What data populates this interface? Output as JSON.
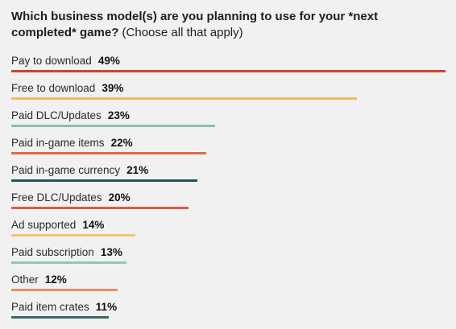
{
  "chart_data": {
    "type": "bar",
    "orientation": "horizontal",
    "title": "Which business model(s) are you planning to use for your *next completed* game?",
    "subtitle": "(Choose all that apply)",
    "categories": [
      "Pay to download",
      "Free to download",
      "Paid DLC/Updates",
      "Paid in-game items",
      "Paid in-game currency",
      "Free DLC/Updates",
      "Ad supported",
      "Paid subscription",
      "Other",
      "Paid item crates"
    ],
    "values": [
      49,
      39,
      23,
      22,
      21,
      20,
      14,
      13,
      12,
      11
    ],
    "value_labels": [
      "49%",
      "39%",
      "23%",
      "22%",
      "21%",
      "20%",
      "14%",
      "13%",
      "12%",
      "11%"
    ],
    "unit": "%",
    "xlim": [
      0,
      49
    ],
    "colors": [
      "#c9472b",
      "#f2bc5e",
      "#8dbfb1",
      "#e36a46",
      "#1f5552",
      "#e0593f",
      "#f3c46e",
      "#95c6b8",
      "#ee8a64",
      "#3b6766"
    ],
    "grid": false,
    "legend": "none"
  }
}
